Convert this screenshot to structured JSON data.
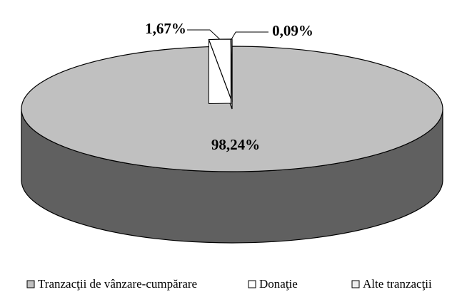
{
  "chart_data": {
    "type": "pie",
    "categories": [
      "Tranzacţii de vânzare-cumpărare",
      "Donaţie",
      "Alte tranzacţii"
    ],
    "values": [
      98.24,
      1.67,
      0.09
    ],
    "value_labels": [
      "98,24%",
      "1,67%",
      "0,09%"
    ],
    "colors": [
      "#c0c0c0",
      "#ffffff",
      "#eeeeee"
    ],
    "side_color": "#606060",
    "legend": "bottom"
  }
}
